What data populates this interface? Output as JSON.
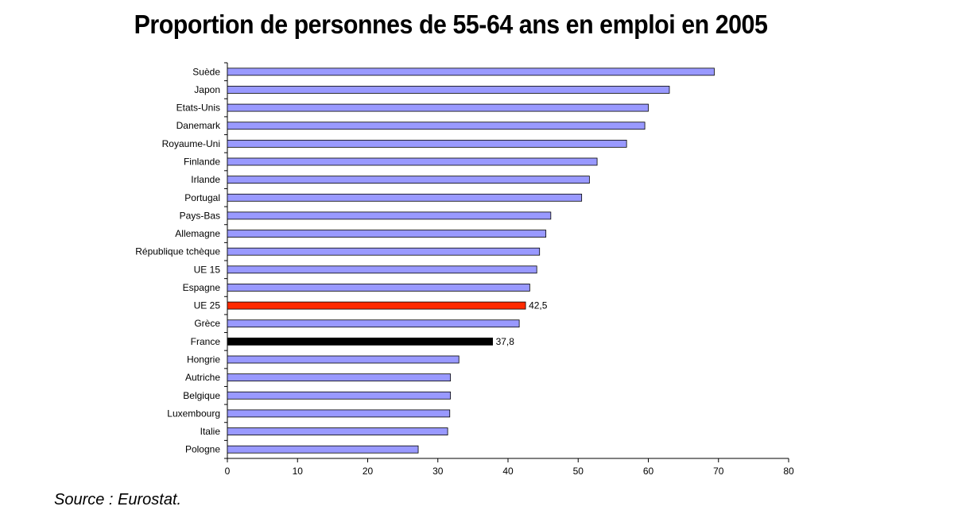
{
  "chart_data": {
    "type": "bar",
    "orientation": "horizontal",
    "title": "Proportion de personnes de 55-64 ans en emploi en 2005",
    "categories": [
      "Suède",
      "Japon",
      "Etats-Unis",
      "Danemark",
      "Royaume-Uni",
      "Finlande",
      "Irlande",
      "Portugal",
      "Pays-Bas",
      "Allemagne",
      "République tchèque",
      "UE 15",
      "Espagne",
      "UE 25",
      "Grèce",
      "France",
      "Hongrie",
      "Autriche",
      "Belgique",
      "Luxembourg",
      "Italie",
      "Pologne"
    ],
    "values": [
      69.4,
      63.0,
      60.0,
      59.5,
      56.9,
      52.7,
      51.6,
      50.5,
      46.1,
      45.4,
      44.5,
      44.1,
      43.1,
      42.5,
      41.6,
      37.8,
      33.0,
      31.8,
      31.8,
      31.7,
      31.4,
      27.2
    ],
    "data_labels": {
      "UE 25": "42,5",
      "France": "37,8"
    },
    "highlight": {
      "UE 25": "#ff2a00",
      "France": "#000000"
    },
    "default_color": "#9999ff",
    "xlim": [
      0,
      80
    ],
    "xticks": [
      0,
      10,
      20,
      30,
      40,
      50,
      60,
      70,
      80
    ],
    "grid": false,
    "legend": "none"
  },
  "source": "Source : Eurostat."
}
